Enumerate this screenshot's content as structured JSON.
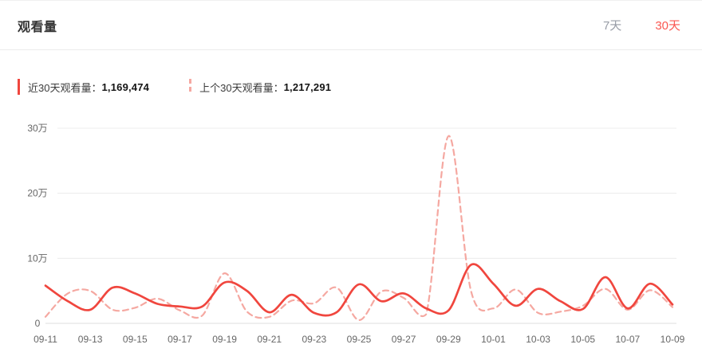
{
  "header": {
    "title": "观看量",
    "tabs": [
      {
        "label": "7天",
        "active": false
      },
      {
        "label": "30天",
        "active": true
      }
    ]
  },
  "legend": [
    {
      "label": "近30天观看量：",
      "value": "1,169,474",
      "marker": "solid"
    },
    {
      "label": "上个30天观看量：",
      "value": "1,217,291",
      "marker": "dashed"
    }
  ],
  "colors": {
    "accent_red": "#fa5751",
    "line_solid": "#f0463e",
    "line_dashed": "#f5a8a1",
    "tab_inactive": "#979ca6",
    "grid": "#ececec",
    "axis": "#dcdcdc",
    "axis_label": "#666666",
    "background": "#ffffff"
  },
  "chart_data": {
    "type": "line",
    "title": "观看量",
    "unit": "万",
    "x": [
      "09-11",
      "09-12",
      "09-13",
      "09-14",
      "09-15",
      "09-16",
      "09-17",
      "09-18",
      "09-19",
      "09-20",
      "09-21",
      "09-22",
      "09-23",
      "09-24",
      "09-25",
      "09-26",
      "09-27",
      "09-28",
      "09-29",
      "09-30",
      "10-01",
      "10-02",
      "10-03",
      "10-04",
      "10-05",
      "10-06",
      "10-07",
      "10-08",
      "10-09"
    ],
    "x_tick_every": 2,
    "y_ticks": [
      {
        "v": 0,
        "label": "0"
      },
      {
        "v": 10,
        "label": "10万"
      },
      {
        "v": 20,
        "label": "20万"
      },
      {
        "v": 30,
        "label": "30万"
      }
    ],
    "ylim": [
      0,
      30
    ],
    "grid": true,
    "legend_position": "top-left",
    "series": [
      {
        "name": "近30天观看量",
        "style": "solid",
        "color": "#f0463e",
        "values": [
          5.8,
          3.4,
          2.1,
          5.5,
          4.6,
          3.0,
          2.6,
          2.6,
          6.3,
          5.0,
          1.7,
          4.4,
          1.6,
          1.7,
          6.0,
          3.4,
          4.6,
          2.3,
          2.0,
          9.0,
          6.1,
          2.7,
          5.3,
          3.4,
          2.2,
          7.1,
          2.3,
          6.1,
          2.9
        ]
      },
      {
        "name": "上个30天观看量",
        "style": "dashed",
        "color": "#f5a8a1",
        "values": [
          1.0,
          4.6,
          5.0,
          2.1,
          2.4,
          3.8,
          2.0,
          1.2,
          7.7,
          1.8,
          1.0,
          3.5,
          3.1,
          5.5,
          0.5,
          4.9,
          3.9,
          1.4,
          28.8,
          5.0,
          2.3,
          5.2,
          1.6,
          1.8,
          2.7,
          5.3,
          2.1,
          5.1,
          2.5
        ]
      }
    ]
  }
}
